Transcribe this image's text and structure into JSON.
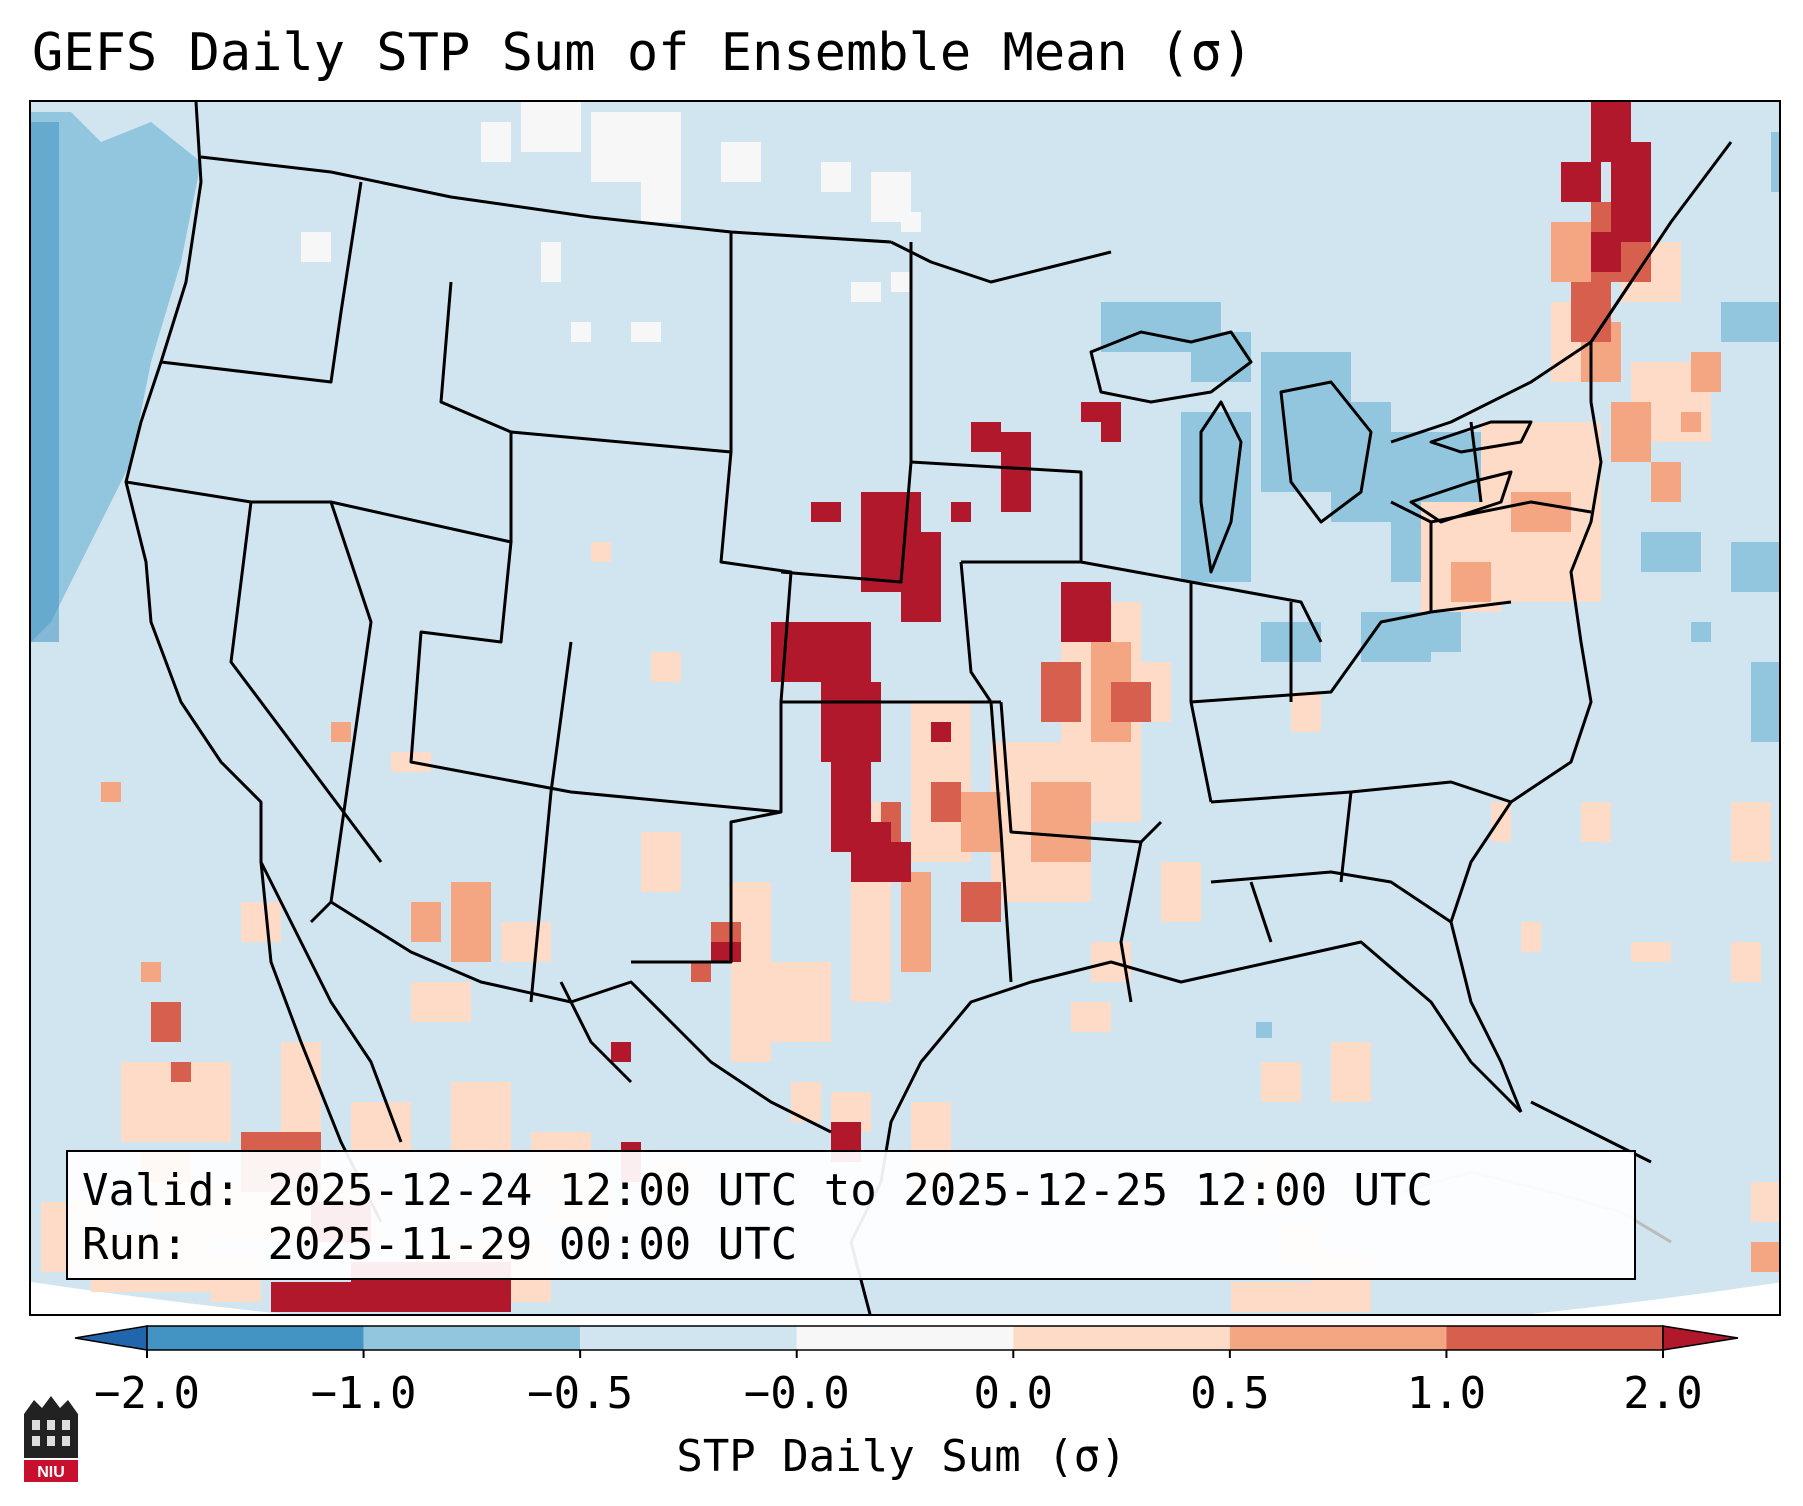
{
  "title": "GEFS Daily STP Sum of Ensemble Mean (σ)",
  "info": {
    "valid_label": "Valid:",
    "valid_value": "2025-12-24 12:00 UTC to 2025-12-25 12:00 UTC",
    "run_label": "Run:",
    "run_value": "2025-11-29 00:00 UTC"
  },
  "colorbar": {
    "label": "STP Daily Sum (σ)",
    "ticks": [
      "−2.0",
      "−1.0",
      "−0.5",
      "−0.0",
      "0.0",
      "0.5",
      "1.0",
      "2.0"
    ],
    "bins": [
      {
        "from": -2.0,
        "to": -1.0,
        "color": "#4393c3"
      },
      {
        "from": -1.0,
        "to": -0.5,
        "color": "#92c5de"
      },
      {
        "from": -0.5,
        "to": -0.0,
        "color": "#d1e5f0"
      },
      {
        "from": -0.0,
        "to": 0.0,
        "color": "#f7f7f7"
      },
      {
        "from": 0.0,
        "to": 0.5,
        "color": "#fddbc7"
      },
      {
        "from": 0.5,
        "to": 1.0,
        "color": "#f4a582"
      },
      {
        "from": 1.0,
        "to": 2.0,
        "color": "#d6604d"
      }
    ],
    "under_color": "#2166ac",
    "over_color": "#b2182b"
  },
  "map": {
    "background_color": "#d1e5f0",
    "boundary_color": "#000000"
  },
  "logo": {
    "text": "NIU",
    "color": "#c8102e"
  }
}
